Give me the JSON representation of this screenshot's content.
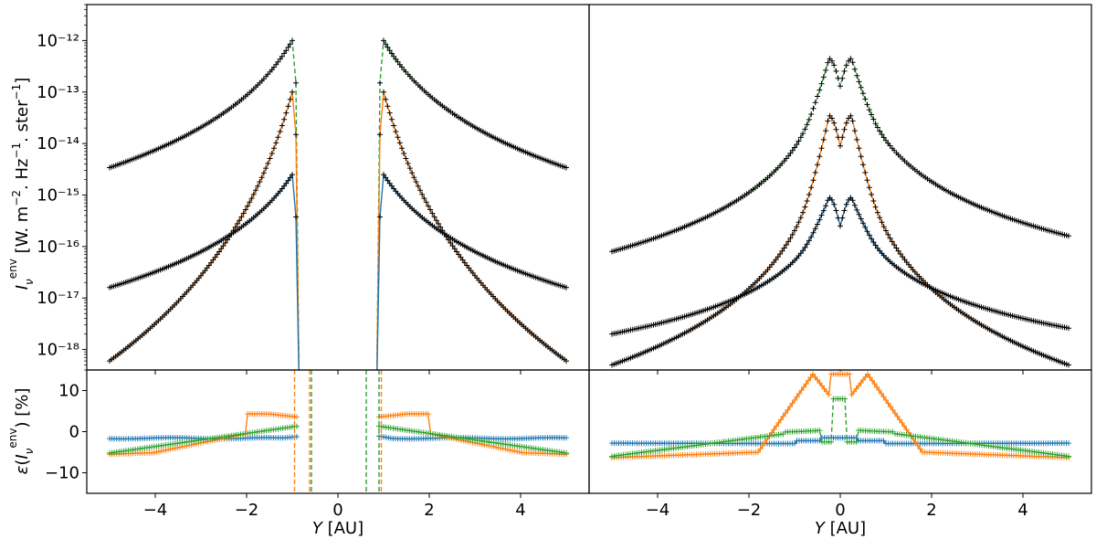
{
  "chart_data": [
    {
      "panel": "top-left",
      "type": "line",
      "yscale": "log",
      "xlim": [
        -5.5,
        5.5
      ],
      "ylim": [
        4e-19,
        5e-12
      ],
      "ylabel": "I_ν^env [W. m^-2. Hz^-1. ster^-1]",
      "yticks": [
        {
          "value": 1e-12,
          "label": "10⁻¹²"
        },
        {
          "value": 1e-13,
          "label": "10⁻¹³"
        },
        {
          "value": 1e-14,
          "label": "10⁻¹⁴"
        },
        {
          "value": 1e-15,
          "label": "10⁻¹⁵"
        },
        {
          "value": 1e-16,
          "label": "10⁻¹⁶"
        },
        {
          "value": 1e-17,
          "label": "10⁻¹⁷"
        },
        {
          "value": 1e-18,
          "label": "10⁻¹⁸"
        }
      ],
      "series": [
        {
          "color": "#2ca02c",
          "peak": 1e-12,
          "edge": 3.4e-15,
          "peak_x": 1.0
        },
        {
          "color": "#ff7f0e",
          "peak": 1e-13,
          "edge": 6e-19,
          "peak_x": 1.0
        },
        {
          "color": "#1f77b4",
          "peak": 2.5e-15,
          "edge": 1.6e-17,
          "peak_x": 1.0
        }
      ]
    },
    {
      "panel": "top-right",
      "type": "line",
      "yscale": "log",
      "xlim": [
        -5.5,
        5.5
      ],
      "ylim": [
        4e-19,
        5e-12
      ],
      "series": [
        {
          "color": "#2ca02c",
          "peak": 4.5e-13,
          "dip": 1.3e-13,
          "edge": 8e-17,
          "edge_right": 1.6e-16
        },
        {
          "color": "#ff7f0e",
          "peak": 3.5e-14,
          "dip": 9e-15,
          "edge": 5e-19
        },
        {
          "color": "#1f77b4",
          "peak": 9e-16,
          "dip": 2.5e-16,
          "edge": 2e-18,
          "edge_right": 2.6e-18
        }
      ]
    },
    {
      "panel": "bottom-left",
      "type": "line",
      "xlim": [
        -5.5,
        5.5
      ],
      "ylim": [
        -15,
        15
      ],
      "xlabel": "Y [AU]",
      "ylabel": "ε(I_ν^env) [%]",
      "yticks": [
        {
          "value": 10,
          "label": "10"
        },
        {
          "value": 0,
          "label": "0"
        },
        {
          "value": -10,
          "label": "−10"
        }
      ],
      "xticks": [
        {
          "value": -4,
          "label": "−4"
        },
        {
          "value": -2,
          "label": "−2"
        },
        {
          "value": 0,
          "label": "0"
        },
        {
          "value": 2,
          "label": "2"
        },
        {
          "value": 4,
          "label": "4"
        }
      ]
    },
    {
      "panel": "bottom-right",
      "type": "line",
      "xlim": [
        -5.5,
        5.5
      ],
      "ylim": [
        -15,
        15
      ],
      "xlabel": "Y [AU]",
      "xticks": [
        {
          "value": -4,
          "label": "−4"
        },
        {
          "value": -2,
          "label": "−2"
        },
        {
          "value": 0,
          "label": "0"
        },
        {
          "value": 2,
          "label": "2"
        },
        {
          "value": 4,
          "label": "4"
        }
      ]
    }
  ],
  "colors": {
    "blue": "#1f77b4",
    "orange": "#ff7f0e",
    "green": "#2ca02c",
    "marker": "#000000"
  }
}
